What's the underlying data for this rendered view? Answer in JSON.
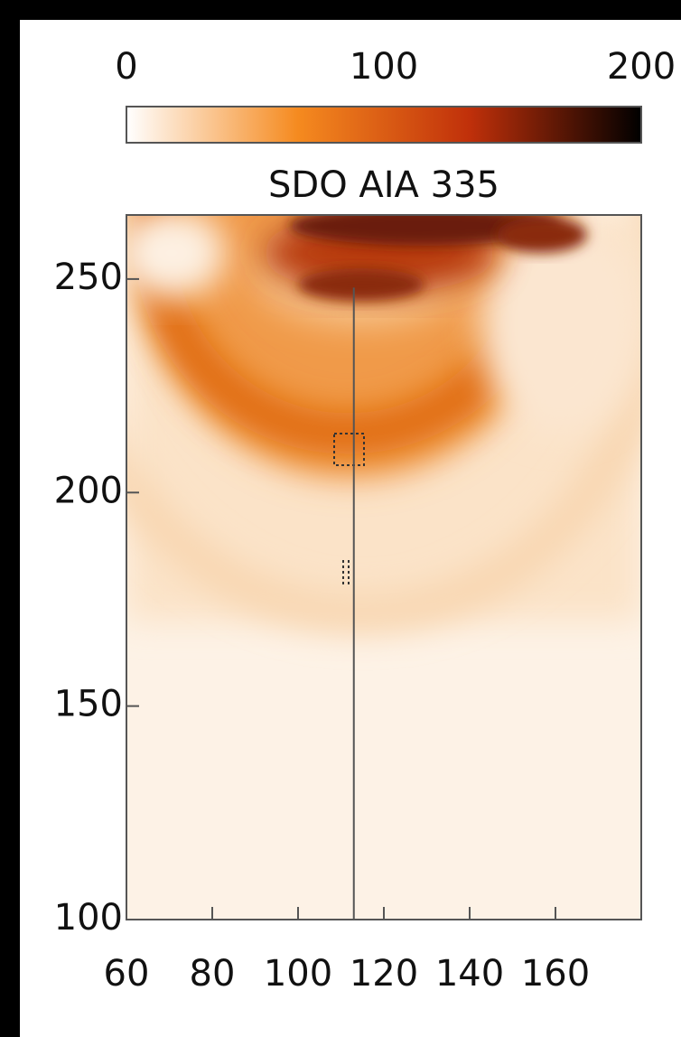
{
  "chart_data": {
    "type": "image",
    "title": "SDO  AIA  335",
    "xlim": [
      60,
      180
    ],
    "xticks": [
      60,
      80,
      100,
      120,
      140,
      160
    ],
    "ylim": [
      100,
      265
    ],
    "yticks": [
      100,
      150,
      200,
      250
    ],
    "colorbar": {
      "lim": [
        0,
        200
      ],
      "ticks": [
        0,
        100,
        200
      ],
      "colors": [
        "#ffffff",
        "#f58a1f",
        "#c0300a",
        "#000000"
      ]
    },
    "slit": {
      "x": [
        113,
        113
      ],
      "y": [
        248,
        100
      ],
      "color": "#555555"
    }
  }
}
